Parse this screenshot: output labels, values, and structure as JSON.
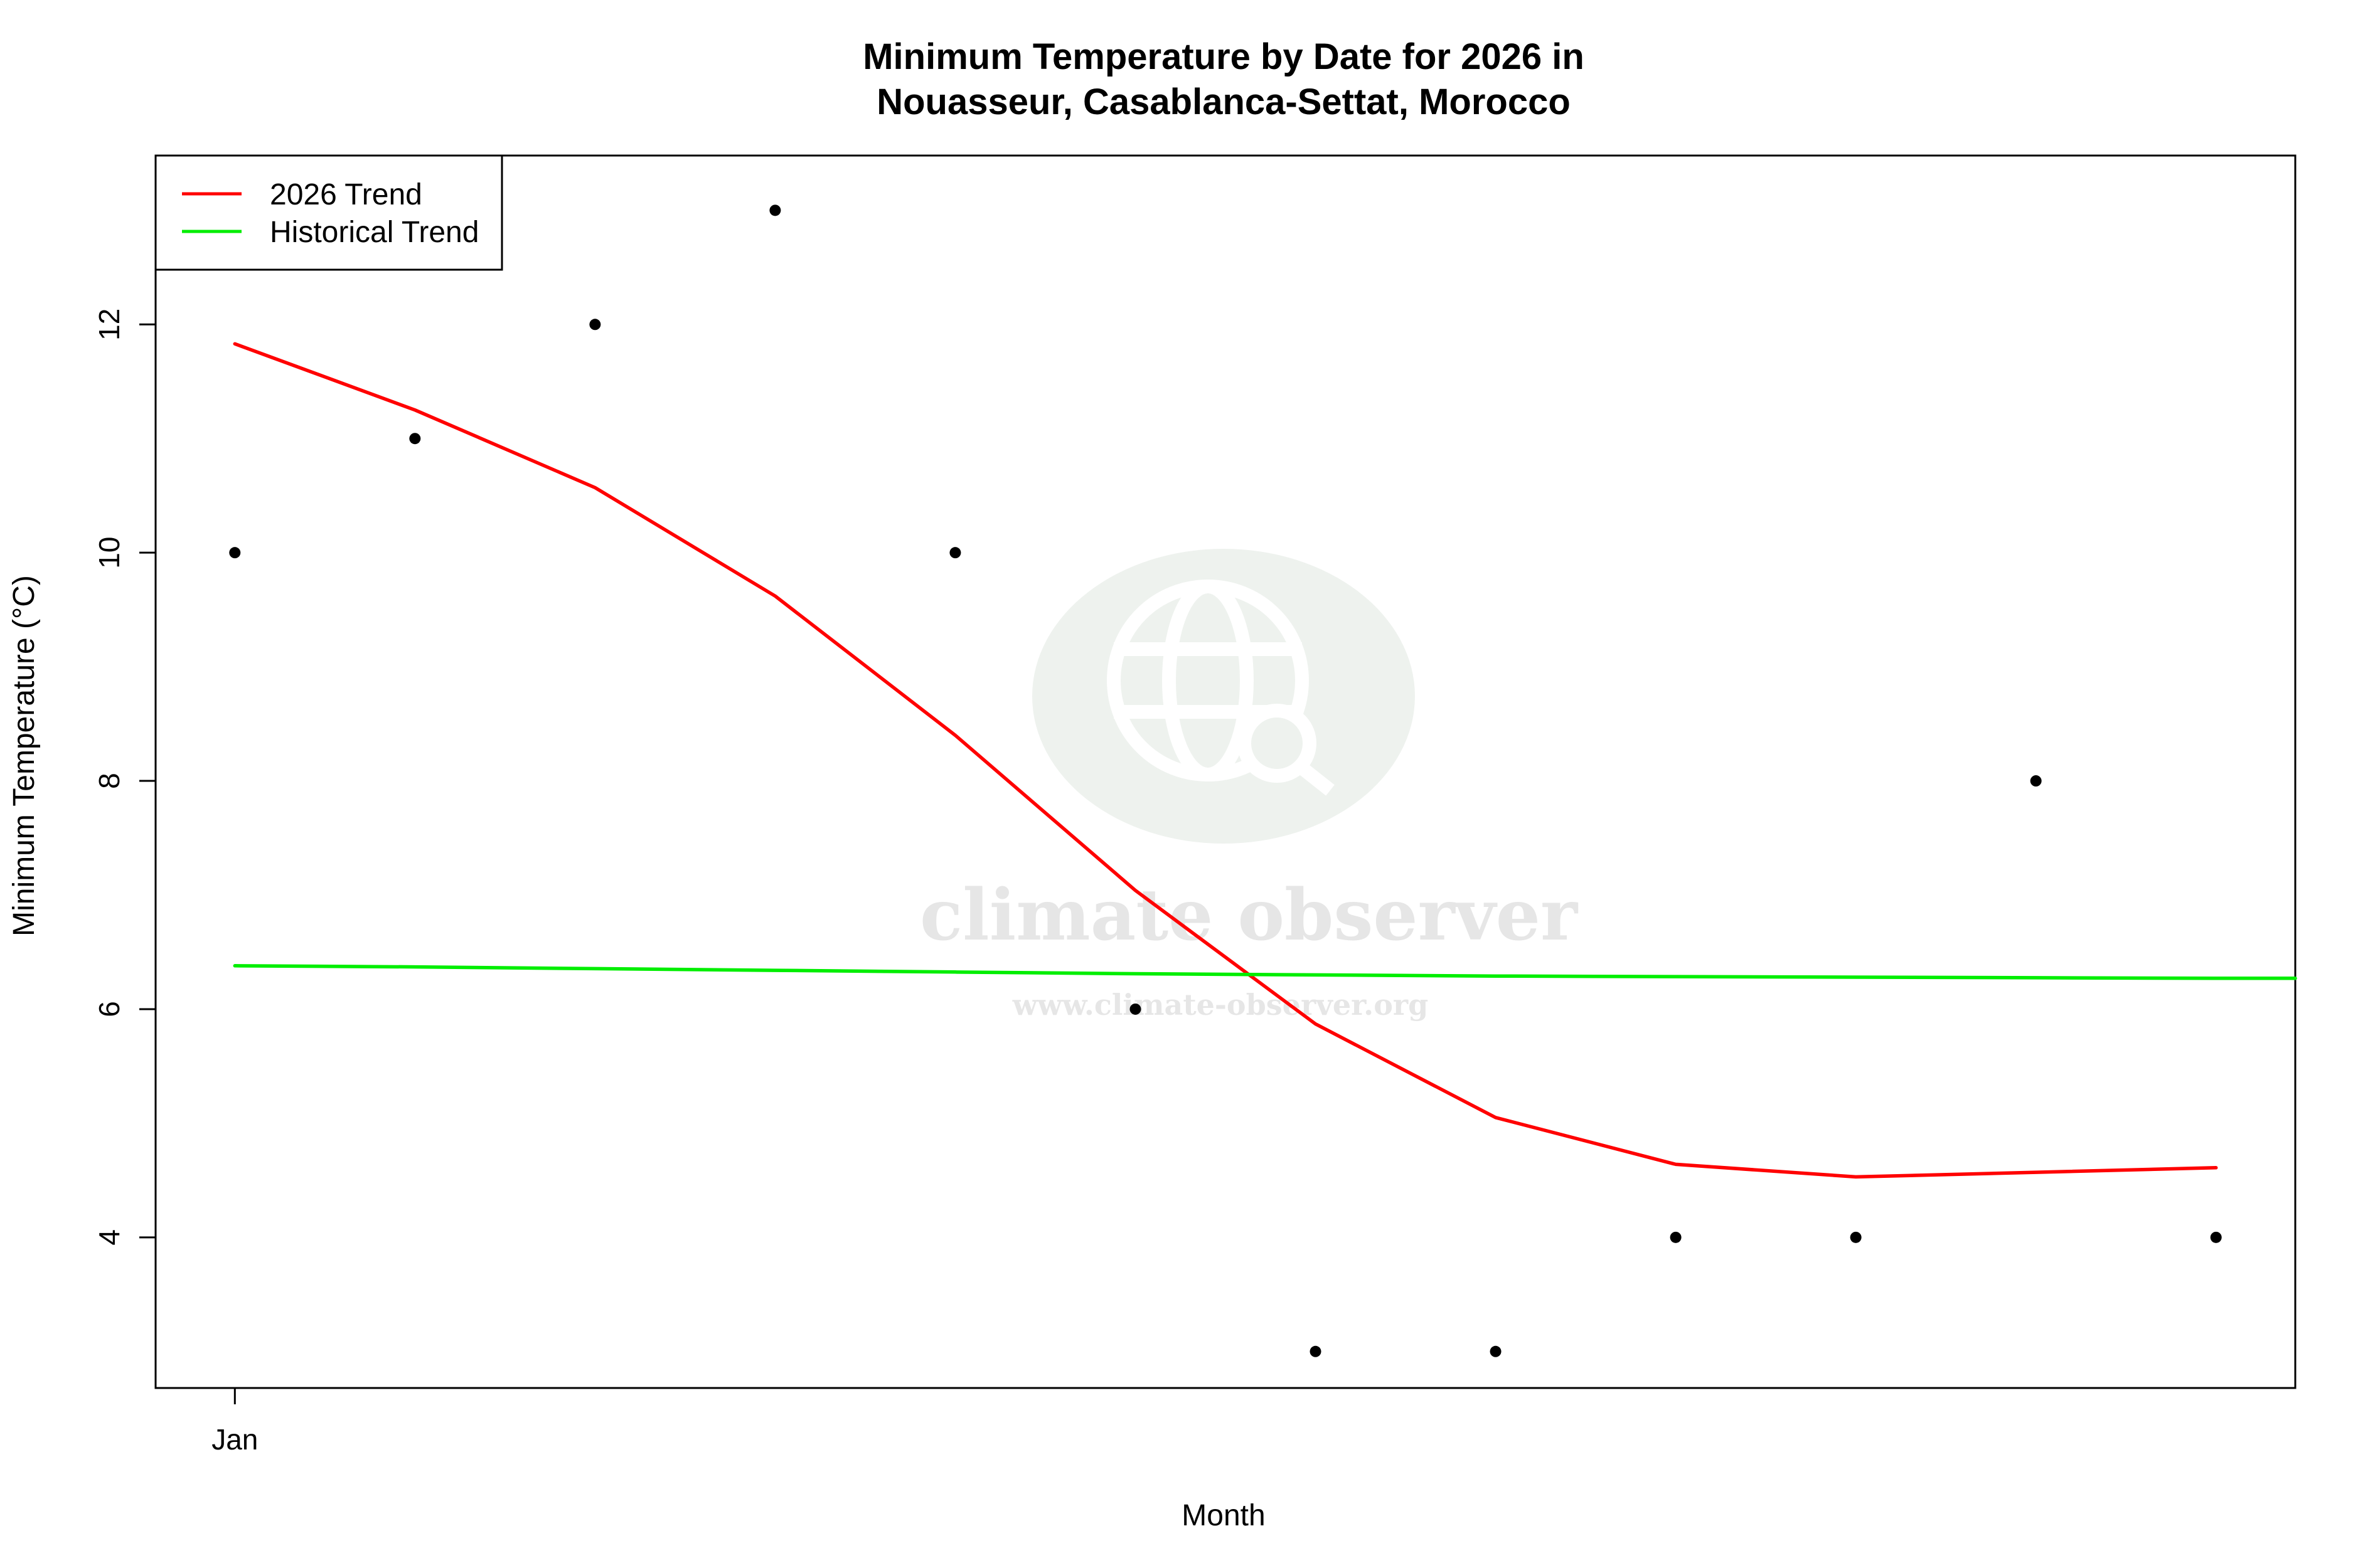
{
  "chart_data": {
    "type": "scatter",
    "title": "Minimum Temperature by Date for 2026 in\nNouasseur, Casablanca-Settat, Morocco",
    "xlabel": "Month",
    "ylabel": "Minimum Temperature (°C)",
    "x_tick_labels": [
      "Jan"
    ],
    "y_ticks": [
      4,
      6,
      8,
      10,
      12
    ],
    "points": [
      {
        "x": 1,
        "y": 10
      },
      {
        "x": 2,
        "y": 11
      },
      {
        "x": 3,
        "y": 12
      },
      {
        "x": 4,
        "y": 13
      },
      {
        "x": 5,
        "y": 10
      },
      {
        "x": 6,
        "y": 6
      },
      {
        "x": 7,
        "y": 3
      },
      {
        "x": 8,
        "y": 3
      },
      {
        "x": 9,
        "y": 4
      },
      {
        "x": 10,
        "y": 4
      },
      {
        "x": 11,
        "y": 8
      },
      {
        "x": 12,
        "y": 4
      }
    ],
    "series": [
      {
        "name": "2026 Trend",
        "color": "#ff0000",
        "x": [
          1,
          2,
          3,
          4,
          5,
          6,
          7,
          8,
          9,
          10,
          11,
          12
        ],
        "y": [
          11.83,
          11.25,
          10.57,
          9.62,
          8.4,
          7.04,
          5.87,
          5.05,
          4.64,
          4.53,
          4.57,
          4.61
        ]
      },
      {
        "name": "Historical Trend",
        "color": "#00ee00",
        "x": [
          1,
          2,
          3,
          4,
          5,
          6,
          7,
          8,
          9,
          10,
          11,
          12,
          12.44
        ],
        "y": [
          6.38,
          6.37,
          6.355,
          6.34,
          6.325,
          6.31,
          6.3,
          6.29,
          6.285,
          6.28,
          6.275,
          6.27,
          6.27
        ]
      }
    ],
    "xlim": [
      0.56,
      12.44
    ],
    "ylim": [
      2.68,
      13.48
    ],
    "legend_position": "top-left",
    "grid": false
  },
  "watermark": {
    "brand": "climate observer",
    "url": "www.climate-observer.org",
    "icon": "globe-search-icon"
  }
}
